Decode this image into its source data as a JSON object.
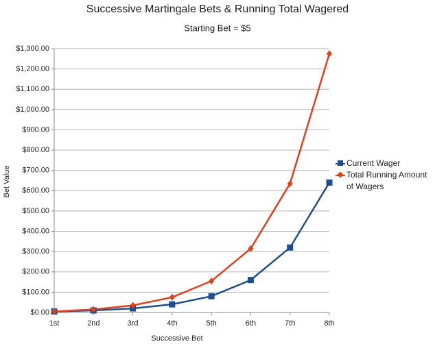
{
  "chart_data": {
    "type": "line",
    "title": "Successive Martingale Bets & Running Total Wagered",
    "subtitle": "Starting Bet = $5",
    "x_label": "Successive Bet",
    "y_label": "Bet Value",
    "categories": [
      "1st",
      "2nd",
      "3rd",
      "4th",
      "5th",
      "6th",
      "7th",
      "8th"
    ],
    "series": [
      {
        "name": "Current Wager",
        "color": "#1f4e8c",
        "marker": "square",
        "values": [
          5,
          10,
          20,
          40,
          80,
          160,
          320,
          640
        ]
      },
      {
        "name": "Total Running Amount of Wagers",
        "color": "#e2401c",
        "marker": "diamond",
        "values": [
          5,
          15,
          35,
          75,
          155,
          315,
          635,
          1275
        ]
      }
    ],
    "ylim": [
      0,
      1300
    ],
    "yticks": [
      {
        "value": 0,
        "label": "$0.00"
      },
      {
        "value": 100,
        "label": "$100.00"
      },
      {
        "value": 200,
        "label": "$200.00"
      },
      {
        "value": 300,
        "label": "$300.00"
      },
      {
        "value": 400,
        "label": "$400.00"
      },
      {
        "value": 500,
        "label": "$500.00"
      },
      {
        "value": 600,
        "label": "$600.00"
      },
      {
        "value": 700,
        "label": "$700.00"
      },
      {
        "value": 800,
        "label": "$800.00"
      },
      {
        "value": 900,
        "label": "$900.00"
      },
      {
        "value": 1000,
        "label": "$1,000.00"
      },
      {
        "value": 1100,
        "label": "$1,100.00"
      },
      {
        "value": 1200,
        "label": "$1,200.00"
      },
      {
        "value": 1300,
        "label": "$1,300.00"
      }
    ],
    "grid": true,
    "legend": "right"
  }
}
